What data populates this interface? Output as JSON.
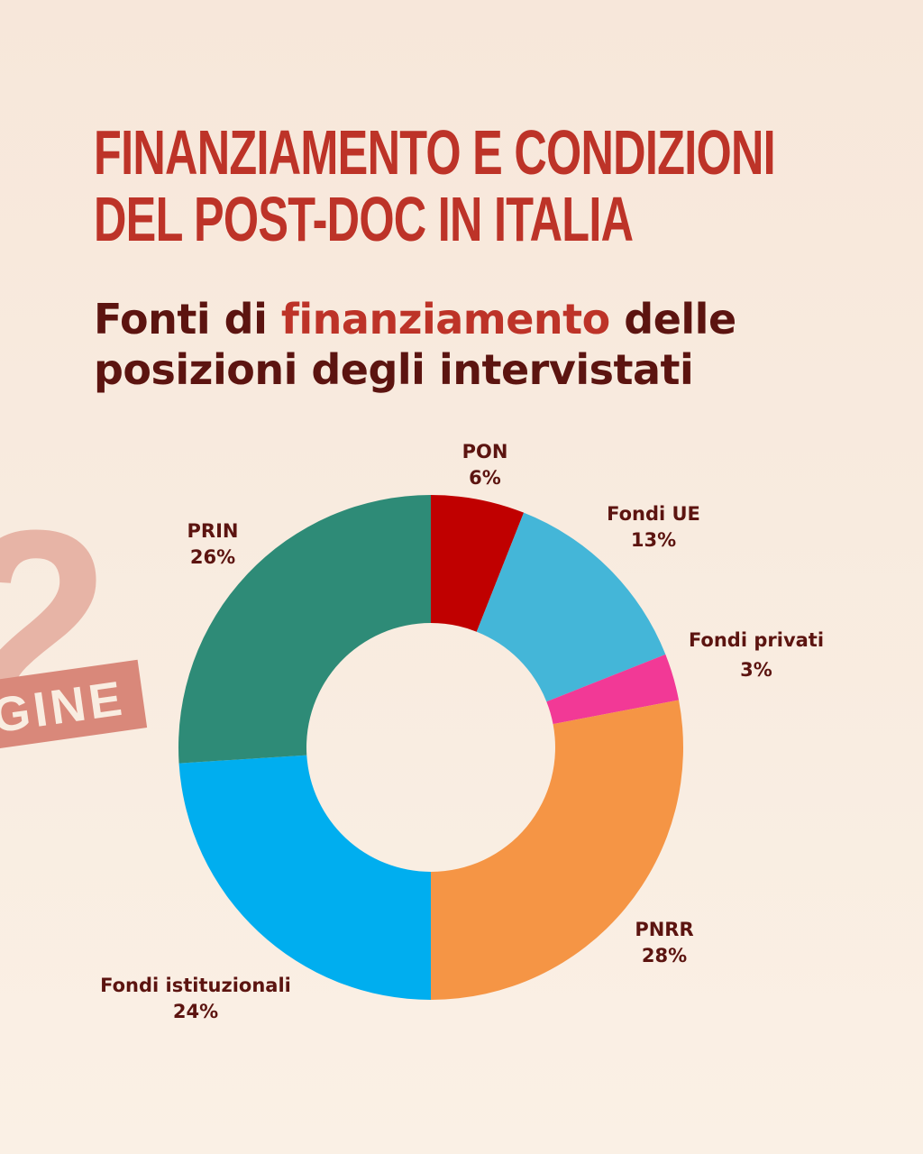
{
  "header": {
    "title_line1": "FINANZIAMENTO E CONDIZIONI",
    "title_line2": "DEL POST-DOC IN ITALIA"
  },
  "subtitle": {
    "part1": "Fonti di ",
    "highlight": "finanziamento",
    "part2": " delle",
    "line2": "posizioni degli intervistati"
  },
  "decoration": {
    "number": "2",
    "tag_text": "GINE",
    "number_color": "#e7b4a6",
    "tag_color": "#d9887a"
  },
  "colors": {
    "background": "#f9ede1",
    "title": "#bd3328",
    "text_dark": "#5c1410"
  },
  "chart_data": {
    "type": "pie",
    "donut": true,
    "slices": [
      {
        "label": "PON",
        "value": 6,
        "value_label": "6%",
        "color": "#c00000"
      },
      {
        "label": "Fondi UE",
        "value": 13,
        "value_label": "13%",
        "color": "#44b6d8"
      },
      {
        "label": "Fondi privati",
        "value": 3,
        "value_label": "3%",
        "color": "#f23996"
      },
      {
        "label": "PNRR",
        "value": 28,
        "value_label": "28%",
        "color": "#f59545"
      },
      {
        "label": "Fondi istituzionali",
        "value": 24,
        "value_label": "24%",
        "color": "#00aeef"
      },
      {
        "label": "PRIN",
        "value": 26,
        "value_label": "26%",
        "color": "#2e8b77"
      }
    ]
  }
}
